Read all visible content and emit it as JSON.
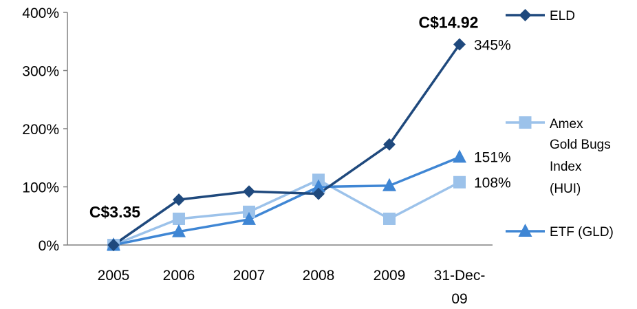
{
  "chart_data": {
    "type": "line",
    "categories": [
      "2005",
      "2006",
      "2007",
      "2008",
      "2009",
      "31-Dec-09"
    ],
    "category_labels": [
      [
        "2005"
      ],
      [
        "2006"
      ],
      [
        "2007"
      ],
      [
        "2008"
      ],
      [
        "2009"
      ],
      [
        "31-Dec-",
        "09"
      ]
    ],
    "ylim": [
      0,
      400
    ],
    "yticks": [
      "0%",
      "100%",
      "200%",
      "300%",
      "400%"
    ],
    "grid": false,
    "legend_position": "right",
    "series": [
      {
        "name": "ELD",
        "marker": "diamond",
        "color": "#1F497D",
        "values": [
          0,
          78,
          92,
          88,
          173,
          345
        ]
      },
      {
        "name": "Amex Gold Bugs Index (HUI)",
        "name_lines": [
          "Amex",
          "Gold Bugs",
          "Index",
          "(HUI)"
        ],
        "marker": "square",
        "color": "#9CC2EA",
        "values": [
          0,
          45,
          57,
          112,
          45,
          108
        ]
      },
      {
        "name": "ETF (GLD)",
        "marker": "triangle",
        "color": "#3F86D4",
        "values": [
          0,
          23,
          44,
          100,
          102,
          151
        ]
      }
    ],
    "annotations": [
      {
        "text": "C$3.35",
        "style": "bold",
        "series": 0,
        "index": 0
      },
      {
        "text": "C$14.92",
        "style": "bold",
        "series": 0,
        "index": 5
      },
      {
        "text": "345%",
        "style": "normal",
        "series": 0,
        "index": 5
      },
      {
        "text": "151%",
        "style": "normal",
        "series": 2,
        "index": 5
      },
      {
        "text": "108%",
        "style": "normal",
        "series": 1,
        "index": 5
      }
    ]
  }
}
